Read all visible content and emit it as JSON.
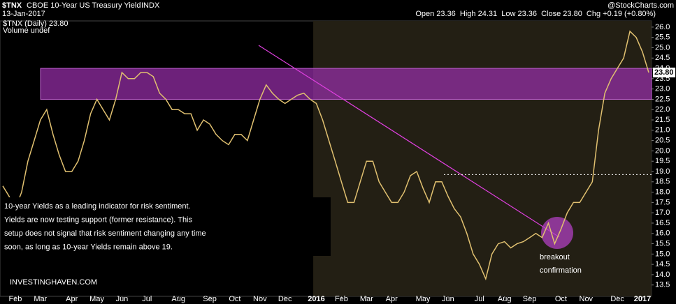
{
  "header": {
    "symbol": "$TNX",
    "name": "CBOE 10-Year US Treasury Yield",
    "exchange": "INDX",
    "date": "13-Jan-2017",
    "source": "@StockCharts.com",
    "ohlc": "Open 23.36  High 24.31  Low 23.36  Close 23.80  Chg +0.19 (+0.80%)"
  },
  "chart_data": {
    "type": "line",
    "legend": [
      "$TNX (Daily) 23.80",
      "Volume undef"
    ],
    "last_label": {
      "value": 23.8,
      "label": "23.80"
    },
    "categories": [
      null,
      null,
      "Feb",
      null,
      null,
      null,
      "Mar",
      null,
      null,
      null,
      null,
      "Apr",
      null,
      null,
      null,
      "May",
      null,
      null,
      null,
      "Jun",
      null,
      null,
      null,
      "Jul",
      null,
      null,
      null,
      null,
      "Aug",
      null,
      null,
      null,
      null,
      "Sep",
      null,
      null,
      null,
      "Oct",
      null,
      null,
      null,
      "Nov",
      null,
      null,
      null,
      "Dec",
      null,
      null,
      null,
      null,
      "2016",
      null,
      null,
      null,
      "Feb",
      null,
      null,
      null,
      "Mar",
      null,
      null,
      null,
      "Apr",
      null,
      null,
      null,
      null,
      "May",
      null,
      null,
      null,
      "Jun",
      null,
      null,
      null,
      null,
      "Jul",
      null,
      null,
      null,
      "Aug",
      null,
      null,
      null,
      "Sep",
      null,
      null,
      null,
      null,
      "Oct",
      null,
      null,
      null,
      "Nov",
      null,
      null,
      null,
      null,
      "Dec",
      null,
      null,
      null,
      "2017",
      null
    ],
    "series": [
      {
        "name": "$TNX",
        "color": "#e0c070",
        "values": [
          18.3,
          17.8,
          17.2,
          18.0,
          19.5,
          20.5,
          21.5,
          22.0,
          20.8,
          19.8,
          19.0,
          19.0,
          19.5,
          20.5,
          21.8,
          22.5,
          22.0,
          21.5,
          22.5,
          23.8,
          23.5,
          23.5,
          23.8,
          23.8,
          23.6,
          22.8,
          22.5,
          22.0,
          22.0,
          21.8,
          21.8,
          21.0,
          21.5,
          21.3,
          20.8,
          20.5,
          20.3,
          20.8,
          20.8,
          20.5,
          21.5,
          22.5,
          23.2,
          22.8,
          22.5,
          22.3,
          22.5,
          22.7,
          22.8,
          22.5,
          22.3,
          21.5,
          20.5,
          19.5,
          18.5,
          17.5,
          17.5,
          18.5,
          19.5,
          19.5,
          18.5,
          18.0,
          17.5,
          17.5,
          18.0,
          18.8,
          19.0,
          18.2,
          17.5,
          18.5,
          18.5,
          17.8,
          17.2,
          16.8,
          16.0,
          15.0,
          14.5,
          13.8,
          15.0,
          15.5,
          15.6,
          15.3,
          15.5,
          15.6,
          15.8,
          16.0,
          15.8,
          16.5,
          15.5,
          16.2,
          17.0,
          17.5,
          17.5,
          18.0,
          18.5,
          21.0,
          22.8,
          23.5,
          24.0,
          24.5,
          25.8,
          25.5,
          24.8,
          23.8
        ]
      }
    ],
    "resistance_band": [
      22.5,
      24.0
    ],
    "band_color": "#9b2fae",
    "breakout_level": 18.85,
    "ylim": [
      12.95,
      26.3
    ],
    "yticks": [
      13.5,
      {
        "value": 14,
        "label": "14.0"
      },
      14.5,
      {
        "value": 15,
        "label": "15.0"
      },
      15.5,
      {
        "value": 16,
        "label": "16.0"
      },
      16.5,
      {
        "value": 17,
        "label": "17.0"
      },
      17.5,
      {
        "value": 18,
        "label": "18.0"
      },
      18.5,
      {
        "value": 19,
        "label": "19.0"
      },
      19.5,
      {
        "value": 20,
        "label": "20.0"
      },
      20.5,
      {
        "value": 21,
        "label": "21.0"
      },
      21.5,
      {
        "value": 22,
        "label": "22.0"
      },
      22.5,
      {
        "value": 23,
        "label": "23.0"
      },
      23.5,
      {
        "value": 24,
        "label": "24.0"
      },
      24.5,
      {
        "value": 25,
        "label": "25.0"
      },
      25.5,
      {
        "value": 26,
        "label": "26.0"
      }
    ],
    "annotation": [
      "10-year Yields as a leading indicator for risk sentiment.",
      "Yields are now testing support (former resistance). This",
      "setup does not signal that risk sentiment changing any time",
      "soon, as long as 10-year Yields remain above 19."
    ],
    "breakout_note": [
      "breakout",
      "confirmation"
    ],
    "watermark": "INVESTINGHAVEN.COM"
  }
}
